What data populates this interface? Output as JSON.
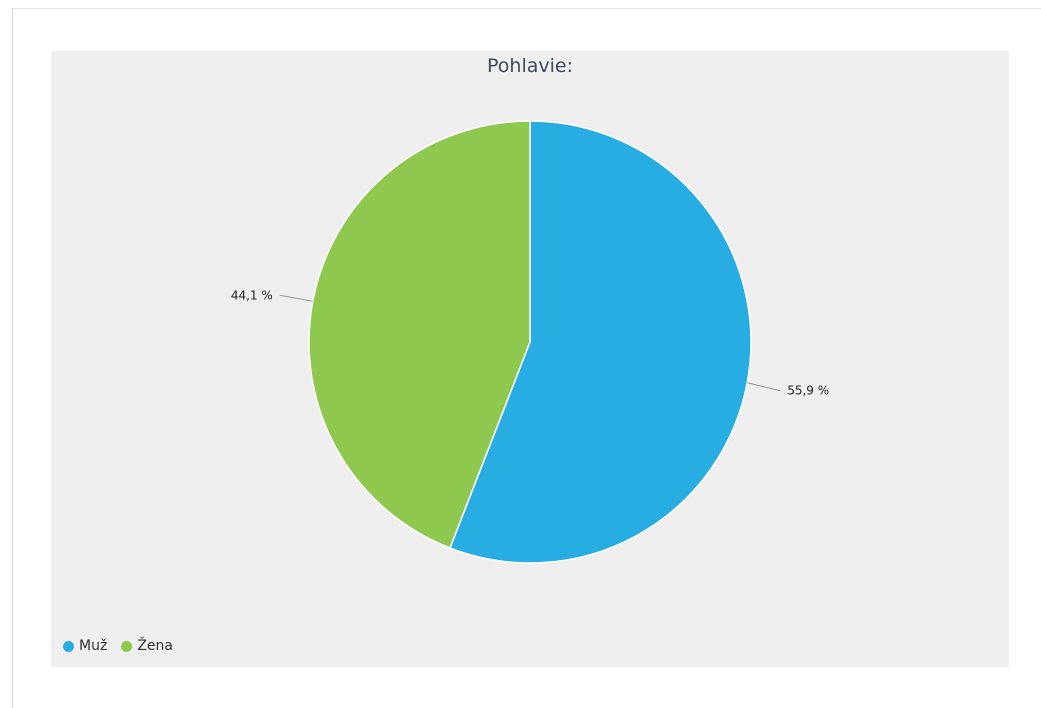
{
  "chart_data": {
    "type": "pie",
    "title": "Pohlavie:",
    "slices": [
      {
        "name": "Muž",
        "value": 55.9,
        "label": "55,9 %",
        "color": "#27ade2"
      },
      {
        "name": "Žena",
        "value": 44.1,
        "label": "44,1 %",
        "color": "#8fc84f"
      }
    ],
    "legend_placement": "bottom-left"
  }
}
